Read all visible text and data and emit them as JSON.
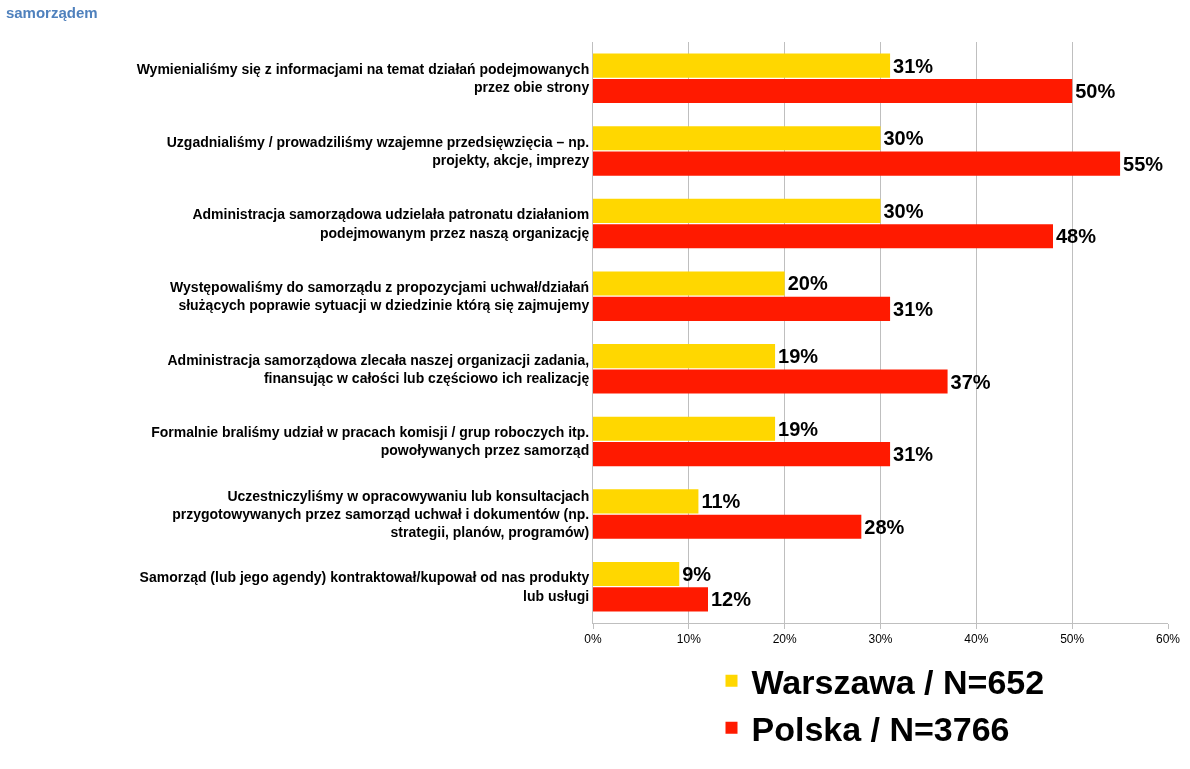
{
  "chart_data": {
    "type": "bar",
    "orientation": "horizontal",
    "title": "samorządem",
    "categories": [
      "Wymienialiśmy się z informacjami na temat działań podejmowanych przez obie strony",
      "Uzgadnialiśmy / prowadziliśmy wzajemne przedsięwzięcia – np. projekty, akcje, imprezy",
      "Administracja samorządowa udzielała patronatu działaniom podejmowanym przez naszą organizację",
      "Występowaliśmy do samorządu z propozycjami uchwał/działań służących poprawie sytuacji w dziedzinie którą się zajmujemy",
      "Administracja samorządowa zlecała naszej organizacji zadania, finansując w całości lub częściowo ich realizację",
      "Formalnie braliśmy udział w pracach komisji / grup roboczych itp. powoływanych przez samorząd",
      "Uczestniczyliśmy w opracowywaniu lub konsultacjach przygotowywanych przez samorząd uchwał i dokumentów (np. strategii, planów, programów)",
      "Samorząd (lub jego agendy) kontraktował/kupował od nas produkty lub usługi"
    ],
    "series": [
      {
        "name": "Warszawa / N=652",
        "color": "#ffd700",
        "values": [
          31,
          30,
          30,
          20,
          19,
          19,
          11,
          9
        ],
        "value_labels": [
          "31%",
          "30%",
          "30%",
          "20%",
          "19%",
          "19%",
          "11%",
          "9%"
        ]
      },
      {
        "name": "Polska / N=3766",
        "color": "#ff1a00",
        "values": [
          50,
          55,
          48,
          31,
          37,
          31,
          28,
          12
        ],
        "value_labels": [
          "50%",
          "55%",
          "48%",
          "31%",
          "37%",
          "31%",
          "28%",
          "12%"
        ]
      }
    ],
    "xlim": [
      0,
      60
    ],
    "xticks": [
      {
        "value": 0,
        "label": "0%"
      },
      {
        "value": 10,
        "label": "10%"
      },
      {
        "value": 20,
        "label": "20%"
      },
      {
        "value": 30,
        "label": "30%"
      },
      {
        "value": 40,
        "label": "40%"
      },
      {
        "value": 50,
        "label": "50%"
      },
      {
        "value": 60,
        "label": "60%"
      }
    ],
    "grid": "x",
    "legend": "bottom"
  }
}
